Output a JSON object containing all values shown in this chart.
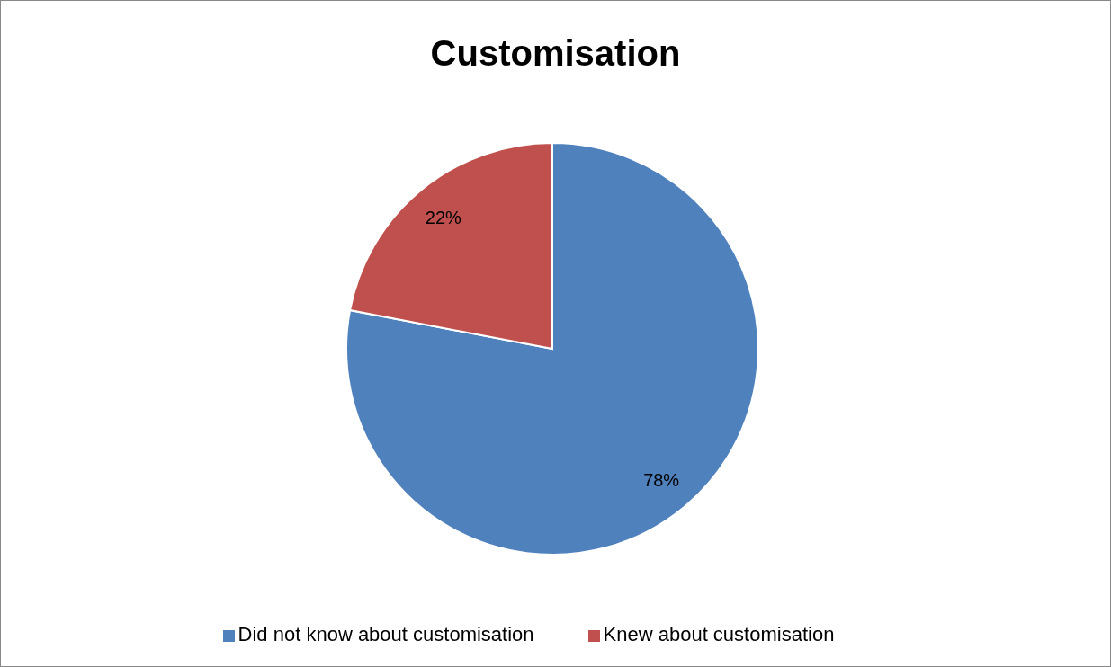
{
  "chart_data": {
    "type": "pie",
    "title": "Customisation",
    "categories": [
      "Did not know about customisation",
      "Knew about customisation"
    ],
    "values": [
      78,
      22
    ],
    "colors": [
      "#4f81bd",
      "#c0504d"
    ],
    "value_labels": [
      "78%",
      "22%"
    ],
    "legend": "bottom"
  }
}
